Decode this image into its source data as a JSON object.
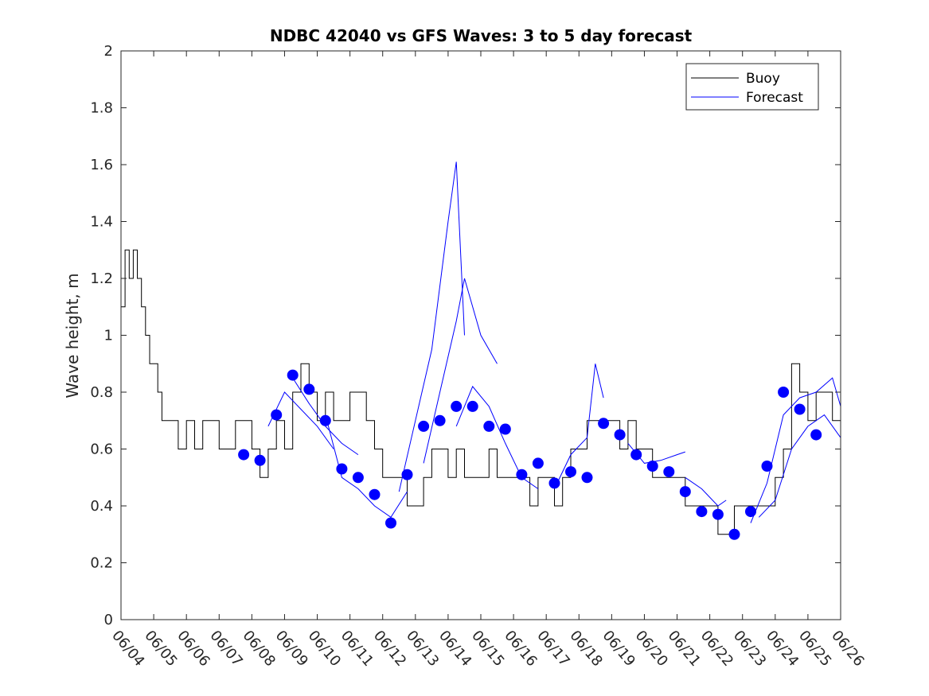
{
  "chart_data": {
    "type": "line",
    "title": "NDBC 42040 vs GFS Waves: 3 to 5 day forecast",
    "xlabel": "",
    "ylabel": "Wave height, m",
    "ylim": [
      0,
      2
    ],
    "yticks": [
      "0",
      "0.2",
      "0.4",
      "0.6",
      "0.8",
      "1",
      "1.2",
      "1.4",
      "1.6",
      "1.8",
      "2"
    ],
    "xlim": [
      "06/04",
      "06/26"
    ],
    "categories": [
      "06/04",
      "06/05",
      "06/06",
      "06/07",
      "06/08",
      "06/09",
      "06/10",
      "06/11",
      "06/12",
      "06/13",
      "06/14",
      "06/15",
      "06/16",
      "06/17",
      "06/18",
      "06/19",
      "06/20",
      "06/21",
      "06/22",
      "06/23",
      "06/24",
      "06/25",
      "06/26"
    ],
    "grid": false,
    "legend_position": "top-right",
    "colors": {
      "buoy": "#000000",
      "forecast": "#0000ff"
    },
    "series": [
      {
        "name": "Buoy",
        "style": "step-line",
        "x": [
          "06/04",
          "06/04 03:00",
          "06/04 06:00",
          "06/04 09:00",
          "06/04 12:00",
          "06/04 15:00",
          "06/04 18:00",
          "06/04 21:00",
          "06/05 00:00",
          "06/05 03:00",
          "06/05 06:00",
          "06/05 09:00",
          "06/05 12:00",
          "06/05 18:00",
          "06/06 00:00",
          "06/06 06:00",
          "06/06 12:00",
          "06/06 18:00",
          "06/07 00:00",
          "06/07 06:00",
          "06/07 12:00",
          "06/07 18:00",
          "06/08 00:00",
          "06/08 06:00",
          "06/08 12:00",
          "06/08 18:00",
          "06/09 00:00",
          "06/09 06:00",
          "06/09 12:00",
          "06/09 18:00",
          "06/10 00:00",
          "06/10 06:00",
          "06/10 12:00",
          "06/10 18:00",
          "06/11 00:00",
          "06/11 06:00",
          "06/11 12:00",
          "06/11 18:00",
          "06/12 00:00",
          "06/12 06:00",
          "06/12 12:00",
          "06/12 18:00",
          "06/13 00:00",
          "06/13 06:00",
          "06/13 12:00",
          "06/13 18:00",
          "06/14 00:00",
          "06/14 06:00",
          "06/14 12:00",
          "06/14 18:00",
          "06/15 00:00",
          "06/15 06:00",
          "06/15 12:00",
          "06/15 18:00",
          "06/16 00:00",
          "06/16 06:00",
          "06/16 12:00",
          "06/16 18:00",
          "06/17 00:00",
          "06/17 06:00",
          "06/17 12:00",
          "06/17 18:00",
          "06/18 00:00",
          "06/18 06:00",
          "06/18 12:00",
          "06/18 18:00",
          "06/19 00:00",
          "06/19 06:00",
          "06/19 12:00",
          "06/19 18:00",
          "06/20 00:00",
          "06/20 06:00",
          "06/20 12:00",
          "06/20 18:00",
          "06/21 00:00",
          "06/21 06:00",
          "06/21 12:00",
          "06/21 18:00",
          "06/22 00:00",
          "06/22 06:00",
          "06/22 12:00",
          "06/22 18:00",
          "06/23 00:00",
          "06/23 06:00",
          "06/23 12:00",
          "06/23 18:00",
          "06/24 00:00",
          "06/24 06:00",
          "06/24 12:00",
          "06/24 18:00",
          "06/25 00:00",
          "06/25 06:00",
          "06/25 12:00",
          "06/25 18:00",
          "06/26 00:00"
        ],
        "values": [
          1.1,
          1.3,
          1.2,
          1.3,
          1.2,
          1.1,
          1.0,
          0.9,
          0.9,
          0.8,
          0.7,
          0.7,
          0.7,
          0.6,
          0.7,
          0.6,
          0.7,
          0.7,
          0.6,
          0.6,
          0.7,
          0.7,
          0.6,
          0.5,
          0.6,
          0.7,
          0.6,
          0.8,
          0.9,
          0.8,
          0.7,
          0.8,
          0.7,
          0.7,
          0.8,
          0.8,
          0.7,
          0.6,
          0.5,
          0.5,
          0.5,
          0.4,
          0.4,
          0.5,
          0.6,
          0.6,
          0.5,
          0.6,
          0.5,
          0.5,
          0.5,
          0.6,
          0.5,
          0.5,
          0.5,
          0.5,
          0.4,
          0.5,
          0.5,
          0.4,
          0.5,
          0.6,
          0.6,
          0.7,
          0.7,
          0.7,
          0.7,
          0.6,
          0.7,
          0.6,
          0.6,
          0.5,
          0.5,
          0.5,
          0.5,
          0.4,
          0.4,
          0.4,
          0.4,
          0.3,
          0.3,
          0.4,
          0.4,
          0.4,
          0.4,
          0.4,
          0.5,
          0.6,
          0.9,
          0.8,
          0.7,
          0.8,
          0.8,
          0.7,
          0.7
        ]
      },
      {
        "name": "Forecast",
        "style": "line-with-markers",
        "x": [
          "06/07 18:00",
          "06/08 06:00",
          "06/08 18:00",
          "06/09 06:00",
          "06/09 18:00",
          "06/10 06:00",
          "06/10 18:00",
          "06/11 06:00",
          "06/11 18:00",
          "06/12 06:00",
          "06/12 18:00",
          "06/13 06:00",
          "06/13 18:00",
          "06/14 06:00",
          "06/14 18:00",
          "06/15 06:00",
          "06/15 18:00",
          "06/16 06:00",
          "06/16 18:00",
          "06/17 06:00",
          "06/17 18:00",
          "06/18 06:00",
          "06/18 18:00",
          "06/19 06:00",
          "06/19 18:00",
          "06/20 06:00",
          "06/20 18:00",
          "06/21 06:00",
          "06/21 18:00",
          "06/22 06:00",
          "06/22 18:00",
          "06/23 06:00",
          "06/23 18:00",
          "06/24 06:00",
          "06/24 18:00",
          "06/25 06:00"
        ],
        "values": [
          0.58,
          0.56,
          0.72,
          0.86,
          0.81,
          0.7,
          0.53,
          0.5,
          0.44,
          0.34,
          0.51,
          0.68,
          0.7,
          0.75,
          0.75,
          0.68,
          0.67,
          0.51,
          0.55,
          0.48,
          0.52,
          0.5,
          0.69,
          0.65,
          0.58,
          0.54,
          0.52,
          0.45,
          0.38,
          0.37,
          0.3,
          0.38,
          0.54,
          0.8,
          0.74,
          0.65
        ]
      }
    ],
    "forecast_runs": [
      {
        "x": [
          "06/08 12:00",
          "06/09 00:00",
          "06/09 12:00",
          "06/10 00:00",
          "06/10 12:00"
        ],
        "values": [
          0.68,
          0.8,
          0.74,
          0.68,
          0.6
        ]
      },
      {
        "x": [
          "06/09 06:00",
          "06/09 18:00",
          "06/10 06:00",
          "06/10 18:00",
          "06/11 06:00"
        ],
        "values": [
          0.85,
          0.76,
          0.68,
          0.62,
          0.58
        ]
      },
      {
        "x": [
          "06/10 06:00",
          "06/10 18:00",
          "06/11 06:00",
          "06/11 18:00",
          "06/12 06:00",
          "06/12 18:00"
        ],
        "values": [
          0.72,
          0.5,
          0.46,
          0.4,
          0.36,
          0.45
        ]
      },
      {
        "x": [
          "06/12 12:00",
          "06/13 00:00",
          "06/13 12:00",
          "06/14 00:00",
          "06/14 06:00",
          "06/14 12:00"
        ],
        "values": [
          0.45,
          0.7,
          0.95,
          1.4,
          1.61,
          1.0
        ]
      },
      {
        "x": [
          "06/13 06:00",
          "06/13 18:00",
          "06/14 06:00",
          "06/14 12:00",
          "06/15 00:00",
          "06/15 12:00"
        ],
        "values": [
          0.55,
          0.8,
          1.05,
          1.2,
          1.0,
          0.9
        ]
      },
      {
        "x": [
          "06/14 06:00",
          "06/14 18:00",
          "06/15 06:00",
          "06/15 18:00",
          "06/16 06:00",
          "06/16 18:00"
        ],
        "values": [
          0.68,
          0.82,
          0.75,
          0.62,
          0.5,
          0.46
        ]
      },
      {
        "x": [
          "06/17 06:00",
          "06/17 18:00",
          "06/18 06:00",
          "06/18 12:00",
          "06/18 18:00"
        ],
        "values": [
          0.46,
          0.58,
          0.64,
          0.9,
          0.78
        ]
      },
      {
        "x": [
          "06/19 12:00",
          "06/20 00:00",
          "06/20 12:00",
          "06/21 00:00",
          "06/21 06:00"
        ],
        "values": [
          0.62,
          0.55,
          0.56,
          0.58,
          0.59
        ]
      },
      {
        "x": [
          "06/21 06:00",
          "06/21 18:00",
          "06/22 06:00",
          "06/22 12:00"
        ],
        "values": [
          0.5,
          0.46,
          0.4,
          0.42
        ]
      },
      {
        "x": [
          "06/23 06:00",
          "06/23 18:00",
          "06/24 06:00",
          "06/24 18:00",
          "06/25 06:00",
          "06/25 18:00",
          "06/26 00:00"
        ],
        "values": [
          0.34,
          0.48,
          0.72,
          0.78,
          0.8,
          0.85,
          0.75
        ]
      },
      {
        "x": [
          "06/23 12:00",
          "06/24 00:00",
          "06/24 12:00",
          "06/25 00:00",
          "06/25 12:00",
          "06/26 00:00"
        ],
        "values": [
          0.36,
          0.42,
          0.6,
          0.68,
          0.72,
          0.64
        ]
      }
    ]
  }
}
